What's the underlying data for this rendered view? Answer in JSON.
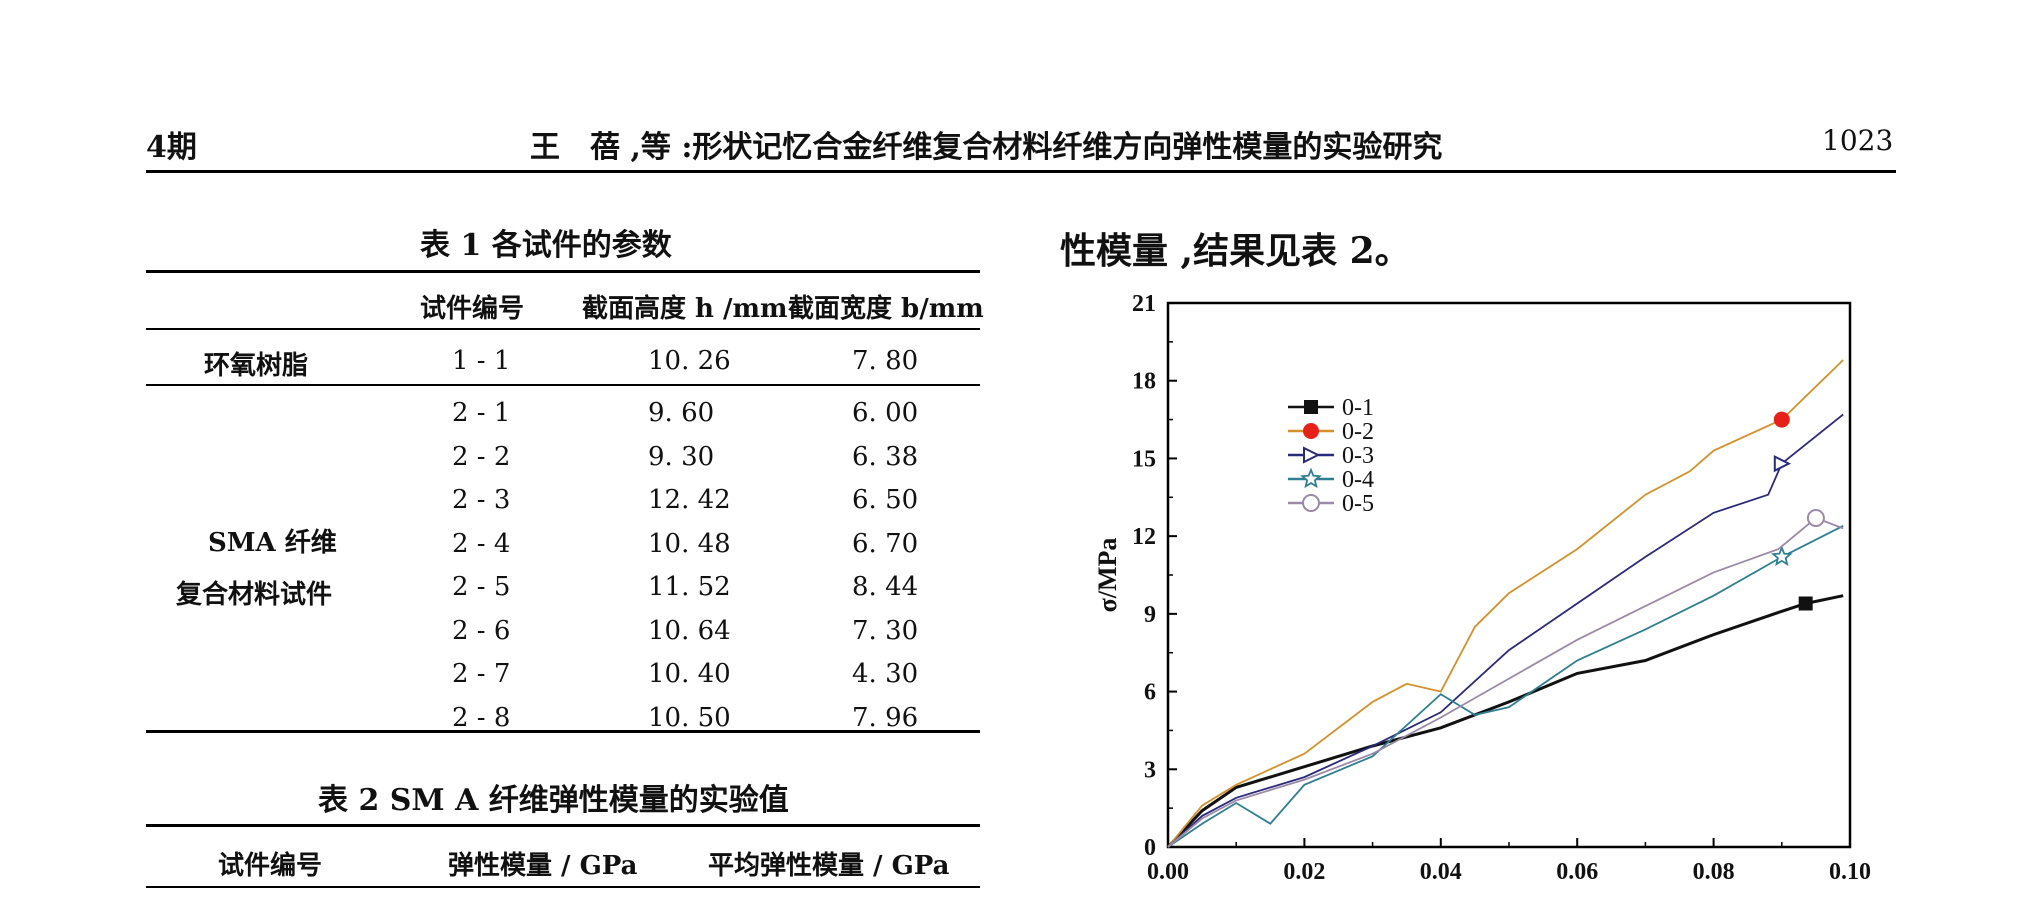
{
  "header": {
    "issue": "4期",
    "running_title": "王　蓓 ,等 :形状记忆合金纤维复合材料纤维方向弹性模量的实验研究",
    "page_number": "1023"
  },
  "table1": {
    "caption": "表 1   各试件的参数",
    "columns": [
      "试件编号",
      "截面高度 h /mm",
      "截面宽度 b/mm"
    ],
    "groups": [
      {
        "label": "环氧树脂",
        "rows": [
          [
            "1 - 1",
            "10. 26",
            "7. 80"
          ]
        ]
      },
      {
        "label_line1": "SMA 纤维",
        "label_line2": "复合材料试件",
        "rows": [
          [
            "2 - 1",
            "9. 60",
            "6. 00"
          ],
          [
            "2 - 2",
            "9. 30",
            "6. 38"
          ],
          [
            "2 - 3",
            "12. 42",
            "6. 50"
          ],
          [
            "2 - 4",
            "10. 48",
            "6. 70"
          ],
          [
            "2 - 5",
            "11. 52",
            "8. 44"
          ],
          [
            "2 - 6",
            "10. 64",
            "7. 30"
          ],
          [
            "2 - 7",
            "10. 40",
            "4. 30"
          ],
          [
            "2 - 8",
            "10. 50",
            "7. 96"
          ]
        ]
      }
    ]
  },
  "table2": {
    "caption": "表 2    SM A 纤维弹性模量的实验值",
    "columns": [
      "试件编号",
      "弹性模量 / GPa",
      "平均弹性模量 / GPa"
    ]
  },
  "body_text": "性模量 ,结果见表  2。",
  "chart_data": {
    "type": "line",
    "ylabel": "σ/MPa",
    "xlabel": "",
    "xlim": [
      0,
      0.1
    ],
    "ylim": [
      0,
      21
    ],
    "x_ticks": [
      "0.00",
      "0.02",
      "0.04",
      "0.06",
      "0.08",
      "0.10"
    ],
    "y_ticks": [
      "0",
      "3",
      "6",
      "9",
      "12",
      "15",
      "18",
      "21"
    ],
    "legend_position": "upper-left",
    "series": [
      {
        "name": "0-1",
        "color": "#111111",
        "marker": "square",
        "x": [
          0,
          0.005,
          0.01,
          0.02,
          0.03,
          0.04,
          0.05,
          0.06,
          0.07,
          0.08,
          0.09,
          0.0935,
          0.099
        ],
        "y": [
          0,
          1.4,
          2.3,
          3.1,
          3.9,
          4.6,
          5.6,
          6.7,
          7.2,
          8.2,
          9.1,
          9.4,
          9.7
        ]
      },
      {
        "name": "0-2",
        "color": "#d4902a",
        "marker": "circle",
        "marker_color": "#e8201a",
        "x": [
          0,
          0.005,
          0.01,
          0.02,
          0.03,
          0.035,
          0.04,
          0.045,
          0.05,
          0.06,
          0.07,
          0.0765,
          0.08,
          0.09,
          0.099
        ],
        "y": [
          0,
          1.6,
          2.4,
          3.6,
          5.6,
          6.3,
          6.0,
          8.5,
          9.8,
          11.5,
          13.6,
          14.5,
          15.3,
          16.5,
          18.8
        ]
      },
      {
        "name": "0-3",
        "color": "#2a2a7a",
        "marker": "triangle-right",
        "x": [
          0,
          0.005,
          0.01,
          0.02,
          0.03,
          0.04,
          0.05,
          0.06,
          0.07,
          0.08,
          0.088,
          0.09,
          0.099
        ],
        "y": [
          0,
          1.2,
          1.9,
          2.7,
          3.9,
          5.2,
          7.6,
          9.4,
          11.2,
          12.9,
          13.6,
          14.8,
          16.7
        ]
      },
      {
        "name": "0-4",
        "color": "#2f7f93",
        "marker": "star",
        "x": [
          0,
          0.005,
          0.01,
          0.015,
          0.02,
          0.03,
          0.04,
          0.045,
          0.05,
          0.06,
          0.07,
          0.08,
          0.09,
          0.099
        ],
        "y": [
          0,
          0.9,
          1.7,
          0.9,
          2.4,
          3.5,
          5.9,
          5.1,
          5.4,
          7.2,
          8.4,
          9.7,
          11.2,
          12.4
        ]
      },
      {
        "name": "0-5",
        "color": "#9a8aa8",
        "marker": "open-circle",
        "x": [
          0,
          0.005,
          0.01,
          0.02,
          0.03,
          0.04,
          0.05,
          0.06,
          0.07,
          0.08,
          0.0895,
          0.095,
          0.099
        ],
        "y": [
          0,
          1.1,
          1.8,
          2.6,
          3.6,
          5.0,
          6.5,
          8.0,
          9.3,
          10.6,
          11.5,
          12.7,
          12.3
        ]
      }
    ]
  }
}
